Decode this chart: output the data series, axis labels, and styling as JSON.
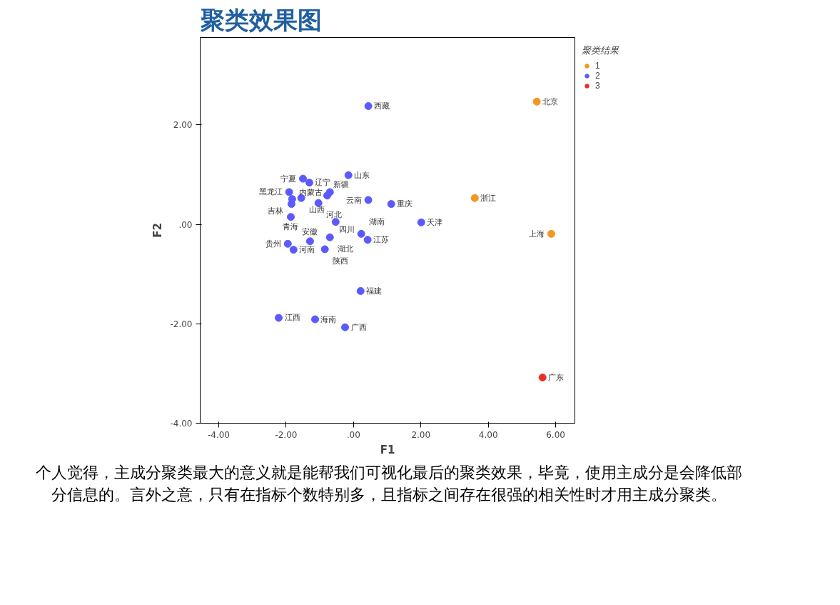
{
  "chart_data": {
    "type": "scatter",
    "title": "聚类效果图",
    "xlabel": "F1",
    "ylabel": "F2",
    "legend_title": "聚类结果",
    "xlim": [
      -4.55,
      6.57
    ],
    "ylim": [
      -4.0,
      3.76
    ],
    "xticks": [
      {
        "value": -4,
        "label": "-4.00"
      },
      {
        "value": -2,
        "label": "-2.00"
      },
      {
        "value": 0,
        "label": ".00"
      },
      {
        "value": 2,
        "label": "2.00"
      },
      {
        "value": 4,
        "label": "4.00"
      },
      {
        "value": 6,
        "label": "6.00"
      }
    ],
    "yticks": [
      {
        "value": -4,
        "label": "-4.00"
      },
      {
        "value": -2,
        "label": "-2.00"
      },
      {
        "value": 0,
        "label": ".00"
      },
      {
        "value": 2,
        "label": "2.00"
      }
    ],
    "grid": false,
    "legend": "right",
    "marker": "circle",
    "series": [
      {
        "name": "1",
        "color": "#f5961e",
        "x": [
          5.44,
          3.6,
          5.87
        ],
        "values": [
          2.47,
          0.53,
          -0.19
        ]
      },
      {
        "name": "2",
        "color": "#5a5aff",
        "x": [
          0.44,
          2.01,
          1.12,
          0.44,
          -0.15,
          -1.5,
          -1.31,
          -1.91,
          -1.55,
          -1.82,
          -1.84,
          -0.7,
          -0.78,
          -1.04,
          -1.86,
          -0.53,
          0.23,
          0.42,
          -1.95,
          -1.78,
          -1.29,
          -0.7,
          -0.85,
          0.21,
          -2.22,
          -1.14,
          -0.25
        ],
        "values": [
          2.38,
          0.04,
          0.41,
          0.49,
          0.99,
          0.92,
          0.84,
          0.65,
          0.53,
          0.51,
          0.41,
          0.65,
          0.58,
          0.43,
          0.15,
          0.05,
          -0.19,
          -0.31,
          -0.39,
          -0.51,
          -0.34,
          -0.26,
          -0.5,
          -1.34,
          -1.88,
          -1.91,
          -2.07
        ]
      },
      {
        "name": "3",
        "color": "#e8302a",
        "x": [
          5.61
        ],
        "values": [
          -3.08
        ]
      }
    ],
    "annotations": [
      {
        "text": "北京",
        "x": 5.44,
        "y": 2.47
      },
      {
        "text": "浙江",
        "x": 3.6,
        "y": 0.53
      },
      {
        "text": "上海",
        "x": 5.87,
        "y": -0.19
      },
      {
        "text": "广东",
        "x": 5.61,
        "y": -3.08
      },
      {
        "text": "西藏",
        "x": 0.44,
        "y": 2.38
      },
      {
        "text": "天津",
        "x": 2.01,
        "y": 0.04
      },
      {
        "text": "重庆",
        "x": 1.12,
        "y": 0.41
      },
      {
        "text": "云南",
        "x": 0.44,
        "y": 0.49
      },
      {
        "text": "山东",
        "x": -0.15,
        "y": 0.99
      },
      {
        "text": "宁夏",
        "x": -1.5,
        "y": 0.92
      },
      {
        "text": "辽宁",
        "x": -1.31,
        "y": 0.84
      },
      {
        "text": "黑龙江",
        "x": -1.91,
        "y": 0.65
      },
      {
        "text": "山西",
        "x": -1.55,
        "y": 0.53
      },
      {
        "text": "吉林",
        "x": -1.82,
        "y": 0.51
      },
      {
        "text": "内蒙古",
        "x": -1.84,
        "y": 0.41
      },
      {
        "text": "新疆",
        "x": -0.7,
        "y": 0.65
      },
      {
        "text": "河北",
        "x": -1.04,
        "y": 0.43
      },
      {
        "text": "青海",
        "x": -1.86,
        "y": 0.15
      },
      {
        "text": "四川",
        "x": -0.53,
        "y": 0.05
      },
      {
        "text": "湖南",
        "x": 0.23,
        "y": -0.19
      },
      {
        "text": "江苏",
        "x": 0.42,
        "y": -0.31
      },
      {
        "text": "贵州",
        "x": -1.95,
        "y": -0.39
      },
      {
        "text": "河南",
        "x": -1.78,
        "y": -0.51
      },
      {
        "text": "安徽",
        "x": -1.29,
        "y": -0.34
      },
      {
        "text": "湖北",
        "x": -0.7,
        "y": -0.26
      },
      {
        "text": "陕西",
        "x": -0.85,
        "y": -0.5
      },
      {
        "text": "福建",
        "x": 0.21,
        "y": -1.34
      },
      {
        "text": "江西",
        "x": -2.22,
        "y": -1.88
      },
      {
        "text": "海南",
        "x": -1.14,
        "y": -1.91
      },
      {
        "text": "广西",
        "x": -0.25,
        "y": -2.07
      },
      "个人觉得，主成分聚类最大的意义就是能帮我们可视化最后的聚类效果，毕竟，使用主成分是会降低部分信息的。言外之意，只有在指标个数特别多，且指标之间存在很强的相关性时才用主成分聚类。"
    ]
  }
}
